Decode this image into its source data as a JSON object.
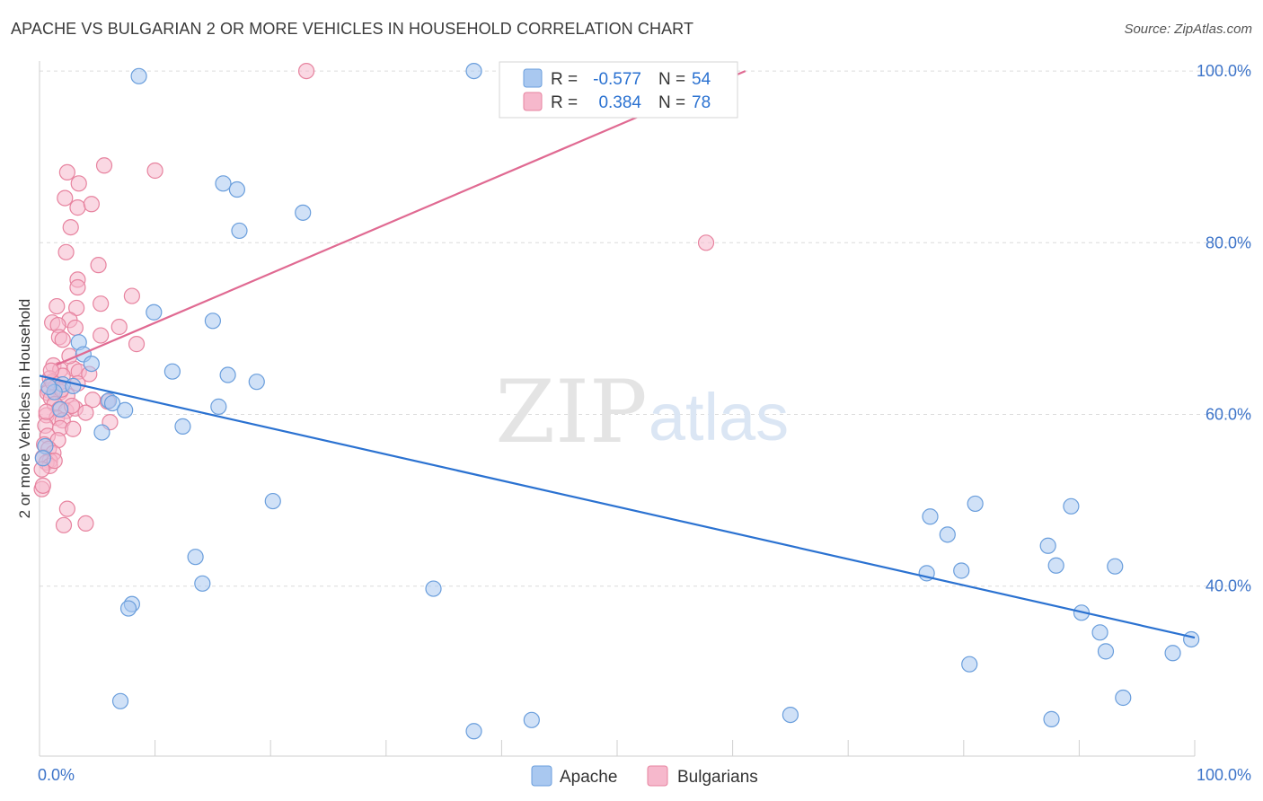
{
  "header": {
    "title": "APACHE VS BULGARIAN 2 OR MORE VEHICLES IN HOUSEHOLD CORRELATION CHART",
    "source": "Source: ZipAtlas.com"
  },
  "watermark": {
    "zip": "ZIP",
    "atlas": "atlas"
  },
  "stats_box": {
    "rows": [
      {
        "r_label": "R =",
        "r_value": "-0.577",
        "n_label": "N =",
        "n_value": "54"
      },
      {
        "r_label": "R =",
        "r_value": "0.384",
        "n_label": "N =",
        "n_value": "78"
      }
    ]
  },
  "colors": {
    "apache_fill": "#a9c8f0",
    "apache_stroke": "#6a9edc",
    "apache_line": "#2b72d1",
    "bulgarian_fill": "#f6b8cc",
    "bulgarian_stroke": "#e7839f",
    "bulgarian_line": "#e06a92",
    "tick_text": "#3d74c9",
    "grid": "#dcdcdc"
  },
  "chart_data": {
    "type": "scatter",
    "title": "APACHE VS BULGARIAN 2 OR MORE VEHICLES IN HOUSEHOLD CORRELATION CHART",
    "xlabel": "",
    "ylabel": "2 or more Vehicles in Household",
    "xlim": [
      0,
      100
    ],
    "ylim": [
      20,
      102
    ],
    "x_tick_labels": [
      {
        "value": 0,
        "label": "0.0%"
      },
      {
        "value": 100,
        "label": "100.0%"
      }
    ],
    "y_tick_labels": [
      {
        "value": 40,
        "label": "40.0%"
      },
      {
        "value": 60,
        "label": "60.0%"
      },
      {
        "value": 80,
        "label": "80.0%"
      },
      {
        "value": 100,
        "label": "100.0%"
      }
    ],
    "grid": true,
    "legend_position": "bottom-center",
    "series": [
      {
        "name": "Apache",
        "r": -0.577,
        "n": 54,
        "trend": {
          "x": [
            0,
            100
          ],
          "y": [
            64.5,
            34.0
          ]
        },
        "points": [
          [
            8.6,
            99.4
          ],
          [
            37.6,
            100
          ],
          [
            15.9,
            86.9
          ],
          [
            17.1,
            86.2
          ],
          [
            22.8,
            83.5
          ],
          [
            17.3,
            81.4
          ],
          [
            9.9,
            71.9
          ],
          [
            15.0,
            70.9
          ],
          [
            3.4,
            68.4
          ],
          [
            3.8,
            67.0
          ],
          [
            4.5,
            65.9
          ],
          [
            11.5,
            65.0
          ],
          [
            16.3,
            64.6
          ],
          [
            18.8,
            63.8
          ],
          [
            2.0,
            63.5
          ],
          [
            2.9,
            63.3
          ],
          [
            1.3,
            62.6
          ],
          [
            0.8,
            63.2
          ],
          [
            6.0,
            61.6
          ],
          [
            6.3,
            61.3
          ],
          [
            7.4,
            60.5
          ],
          [
            15.5,
            60.9
          ],
          [
            12.4,
            58.6
          ],
          [
            5.4,
            57.9
          ],
          [
            0.5,
            56.3
          ],
          [
            20.2,
            49.9
          ],
          [
            13.5,
            43.4
          ],
          [
            14.1,
            40.3
          ],
          [
            8.0,
            37.9
          ],
          [
            7.7,
            37.4
          ],
          [
            34.1,
            39.7
          ],
          [
            7.0,
            26.6
          ],
          [
            37.6,
            23.1
          ],
          [
            42.6,
            24.4
          ],
          [
            65.0,
            25.0
          ],
          [
            77.1,
            48.1
          ],
          [
            78.6,
            46.0
          ],
          [
            81.0,
            49.6
          ],
          [
            76.8,
            41.5
          ],
          [
            79.8,
            41.8
          ],
          [
            87.3,
            44.7
          ],
          [
            89.3,
            49.3
          ],
          [
            88.0,
            42.4
          ],
          [
            93.1,
            42.3
          ],
          [
            90.2,
            36.9
          ],
          [
            91.8,
            34.6
          ],
          [
            92.3,
            32.4
          ],
          [
            99.7,
            33.8
          ],
          [
            98.1,
            32.2
          ],
          [
            80.5,
            30.9
          ],
          [
            93.8,
            27.0
          ],
          [
            87.6,
            24.5
          ],
          [
            0.3,
            54.9
          ],
          [
            1.8,
            60.6
          ]
        ]
      },
      {
        "name": "Bulgarians",
        "r": 0.384,
        "n": 78,
        "trend": {
          "x": [
            1.5,
            61.1
          ],
          "y": [
            65.8,
            100
          ]
        },
        "points": [
          [
            23.1,
            100
          ],
          [
            5.6,
            89.0
          ],
          [
            10.0,
            88.4
          ],
          [
            2.4,
            88.2
          ],
          [
            3.4,
            86.9
          ],
          [
            2.2,
            85.2
          ],
          [
            3.3,
            84.1
          ],
          [
            4.5,
            84.5
          ],
          [
            2.7,
            81.8
          ],
          [
            2.3,
            78.9
          ],
          [
            5.1,
            77.4
          ],
          [
            57.7,
            80.0
          ],
          [
            3.3,
            75.7
          ],
          [
            3.3,
            74.8
          ],
          [
            8.0,
            73.8
          ],
          [
            1.5,
            72.6
          ],
          [
            3.2,
            72.4
          ],
          [
            5.3,
            72.9
          ],
          [
            2.6,
            71.0
          ],
          [
            1.1,
            70.7
          ],
          [
            1.6,
            70.4
          ],
          [
            3.1,
            70.1
          ],
          [
            6.9,
            70.2
          ],
          [
            5.3,
            69.2
          ],
          [
            1.7,
            69.0
          ],
          [
            2.0,
            68.7
          ],
          [
            8.4,
            68.2
          ],
          [
            1.2,
            65.7
          ],
          [
            1.8,
            65.2
          ],
          [
            3.0,
            65.3
          ],
          [
            3.4,
            65.0
          ],
          [
            0.9,
            64.2
          ],
          [
            2.0,
            64.5
          ],
          [
            1.2,
            63.6
          ],
          [
            3.3,
            63.6
          ],
          [
            0.8,
            62.8
          ],
          [
            1.4,
            63.2
          ],
          [
            1.8,
            62.6
          ],
          [
            2.4,
            62.2
          ],
          [
            0.7,
            62.5
          ],
          [
            1.0,
            61.9
          ],
          [
            4.6,
            61.7
          ],
          [
            5.9,
            61.5
          ],
          [
            1.3,
            61.2
          ],
          [
            1.7,
            60.6
          ],
          [
            2.3,
            60.4
          ],
          [
            3.1,
            60.7
          ],
          [
            4.0,
            60.2
          ],
          [
            0.6,
            59.9
          ],
          [
            1.5,
            59.6
          ],
          [
            2.0,
            59.3
          ],
          [
            6.1,
            59.1
          ],
          [
            0.5,
            58.7
          ],
          [
            1.8,
            58.4
          ],
          [
            2.9,
            58.3
          ],
          [
            0.7,
            57.5
          ],
          [
            1.6,
            57.0
          ],
          [
            0.4,
            56.5
          ],
          [
            0.8,
            56.0
          ],
          [
            1.2,
            55.5
          ],
          [
            0.3,
            55.0
          ],
          [
            0.9,
            54.6
          ],
          [
            0.6,
            54.4
          ],
          [
            0.9,
            54.0
          ],
          [
            0.2,
            53.6
          ],
          [
            1.3,
            54.6
          ],
          [
            0.2,
            51.3
          ],
          [
            0.3,
            51.7
          ],
          [
            2.4,
            49.0
          ],
          [
            2.1,
            47.1
          ],
          [
            4.0,
            47.3
          ],
          [
            1.1,
            63.8
          ],
          [
            2.6,
            66.8
          ],
          [
            1.0,
            65.1
          ],
          [
            0.6,
            60.3
          ],
          [
            1.9,
            62.9
          ],
          [
            2.8,
            61.0
          ],
          [
            4.3,
            64.7
          ]
        ]
      }
    ]
  }
}
